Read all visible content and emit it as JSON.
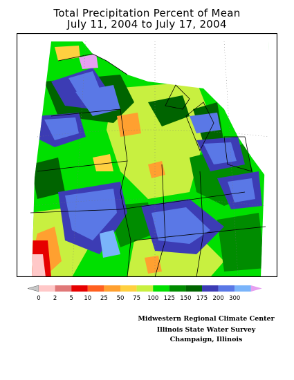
{
  "title_line1": "Total Precipitation Percent of Mean",
  "title_line2": "July 11, 2004 to July 17, 2004",
  "legend": {
    "arrow_left_color": "#c8c8c8",
    "arrow_right_color": "#e6a0f0",
    "bins": [
      {
        "color": "#ffc8c8",
        "label": "0"
      },
      {
        "color": "#e07878",
        "label": "2"
      },
      {
        "color": "#e60000",
        "label": "5"
      },
      {
        "color": "#ff6020",
        "label": "10"
      },
      {
        "color": "#ffa030",
        "label": "25"
      },
      {
        "color": "#ffd040",
        "label": "50"
      },
      {
        "color": "#c8f040",
        "label": "75"
      },
      {
        "color": "#00e000",
        "label": "100"
      },
      {
        "color": "#008c00",
        "label": "125"
      },
      {
        "color": "#006400",
        "label": "150"
      },
      {
        "color": "#3c3cb4",
        "label": "175"
      },
      {
        "color": "#5a78e6",
        "label": "200"
      },
      {
        "color": "#7ab4fa",
        "label": "300"
      }
    ]
  },
  "credits": {
    "line1": "Midwestern Regional Climate Center",
    "line2": "Illinois State Water Survey",
    "line3": "Champaign, Illinois"
  }
}
